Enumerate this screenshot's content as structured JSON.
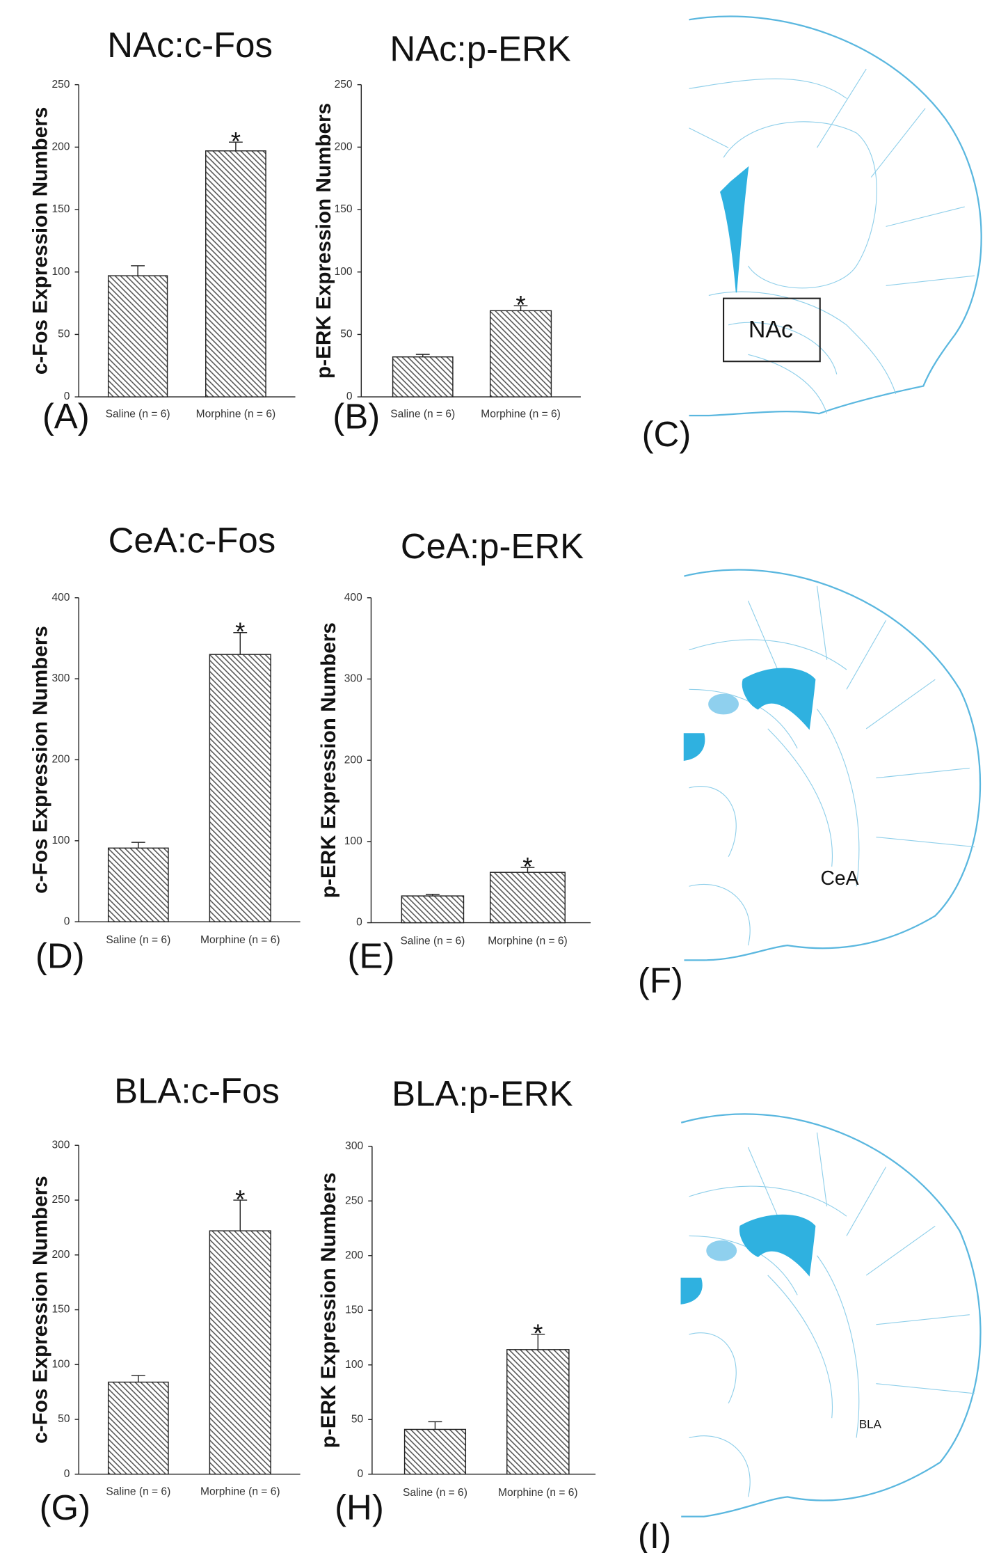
{
  "chart_data": [
    {
      "type": "bar",
      "title": "NAc:c-Fos",
      "ylabel": "c-Fos Expression Numbers",
      "panel": "(A)",
      "categories": [
        "Saline (n = 6)",
        "Morphine (n = 6)"
      ],
      "values": [
        97,
        197
      ],
      "errors": [
        8,
        7
      ],
      "color": "#555555",
      "ylim": [
        0,
        250
      ],
      "yticks": [
        0,
        50,
        100,
        150,
        200,
        250
      ],
      "annotations": [
        {
          "text": "*",
          "x": "Morphine (n = 6)"
        }
      ]
    },
    {
      "type": "bar",
      "title": "NAc:p-ERK",
      "ylabel": "p-ERK Expression Numbers",
      "panel": "(B)",
      "categories": [
        "Saline (n = 6)",
        "Morphine (n = 6)"
      ],
      "values": [
        32,
        69
      ],
      "errors": [
        2,
        4
      ],
      "color": "#555555",
      "ylim": [
        0,
        250
      ],
      "yticks": [
        0,
        50,
        100,
        150,
        200,
        250
      ],
      "annotations": [
        {
          "text": "*",
          "x": "Morphine (n = 6)"
        }
      ]
    },
    {
      "type": "bar",
      "title": "CeA:c-Fos",
      "ylabel": "c-Fos Expression Numbers",
      "panel": "(D)",
      "categories": [
        "Saline (n = 6)",
        "Morphine (n = 6)"
      ],
      "values": [
        91,
        330
      ],
      "errors": [
        7,
        27
      ],
      "color": "#555555",
      "ylim": [
        0,
        400
      ],
      "yticks": [
        0,
        100,
        200,
        300,
        400
      ],
      "annotations": [
        {
          "text": "*",
          "x": "Morphine (n = 6)"
        }
      ]
    },
    {
      "type": "bar",
      "title": "CeA:p-ERK",
      "ylabel": "p-ERK Expression Numbers",
      "panel": "(E)",
      "categories": [
        "Saline (n = 6)",
        "Morphine (n = 6)"
      ],
      "values": [
        33,
        62
      ],
      "errors": [
        2,
        6
      ],
      "color": "#555555",
      "ylim": [
        0,
        400
      ],
      "yticks": [
        0,
        100,
        200,
        300,
        400
      ],
      "annotations": [
        {
          "text": "*",
          "x": "Morphine (n = 6)"
        }
      ]
    },
    {
      "type": "bar",
      "title": "BLA:c-Fos",
      "ylabel": "c-Fos Expression Numbers",
      "panel": "(G)",
      "categories": [
        "Saline (n = 6)",
        "Morphine (n = 6)"
      ],
      "values": [
        84,
        222
      ],
      "errors": [
        6,
        28
      ],
      "color": "#555555",
      "ylim": [
        0,
        300
      ],
      "yticks": [
        0,
        50,
        100,
        150,
        200,
        250,
        300
      ],
      "annotations": [
        {
          "text": "*",
          "x": "Morphine (n = 6)"
        }
      ]
    },
    {
      "type": "bar",
      "title": "BLA:p-ERK",
      "ylabel": "p-ERK Expression Numbers",
      "panel": "(H)",
      "categories": [
        "Saline (n = 6)",
        "Morphine (n = 6)"
      ],
      "values": [
        41,
        114
      ],
      "errors": [
        7,
        14
      ],
      "color": "#555555",
      "ylim": [
        0,
        300
      ],
      "yticks": [
        0,
        50,
        100,
        150,
        200,
        250,
        300
      ],
      "annotations": [
        {
          "text": "*",
          "x": "Morphine (n = 6)"
        }
      ]
    }
  ],
  "diagrams": [
    {
      "label": "NAc",
      "panel": "(C)"
    },
    {
      "label": "CeA",
      "panel": "(F)"
    },
    {
      "label": "BLA",
      "panel": "(I)"
    }
  ]
}
